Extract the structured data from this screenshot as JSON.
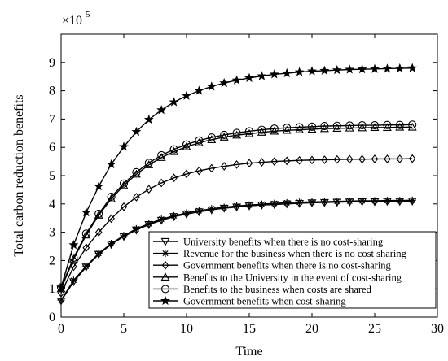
{
  "chart_data": {
    "type": "line",
    "xlabel": "Time",
    "ylabel": "Total carbon reduction benefits",
    "y_multiplier_label": "×10",
    "y_multiplier_exp": "5",
    "xlim": [
      0,
      30
    ],
    "ylim": [
      0,
      10
    ],
    "x_ticks": [
      0,
      5,
      10,
      15,
      20,
      25,
      30
    ],
    "y_ticks": [
      0,
      1,
      2,
      3,
      4,
      5,
      6,
      7,
      8,
      9
    ],
    "grid": false,
    "legend_position": "lower-right",
    "x": [
      0,
      1,
      2,
      3,
      4,
      5,
      6,
      7,
      8,
      9,
      10,
      11,
      12,
      13,
      14,
      15,
      16,
      17,
      18,
      19,
      20,
      21,
      22,
      23,
      24,
      25,
      26,
      27,
      28
    ],
    "series": [
      {
        "name": "University benefits when there is no cost-sharing",
        "marker": "triangle-down",
        "values": [
          0.57,
          1.25,
          1.77,
          2.22,
          2.57,
          2.85,
          3.08,
          3.27,
          3.42,
          3.55,
          3.64,
          3.72,
          3.79,
          3.85,
          3.89,
          3.93,
          3.96,
          3.98,
          4.0,
          4.02,
          4.04,
          4.05,
          4.06,
          4.07,
          4.08,
          4.08,
          4.09,
          4.09,
          4.1
        ]
      },
      {
        "name": "Revenue for the business when there is no cost sharing",
        "marker": "asterisk",
        "values": [
          0.6,
          1.3,
          1.8,
          2.25,
          2.6,
          2.88,
          3.12,
          3.3,
          3.46,
          3.58,
          3.68,
          3.76,
          3.83,
          3.88,
          3.93,
          3.96,
          3.99,
          4.02,
          4.04,
          4.06,
          4.07,
          4.08,
          4.09,
          4.1,
          4.11,
          4.11,
          4.12,
          4.12,
          4.13
        ]
      },
      {
        "name": "Government benefits when there is no cost-sharing",
        "marker": "diamond",
        "values": [
          0.85,
          1.78,
          2.45,
          3.0,
          3.48,
          3.9,
          4.24,
          4.52,
          4.74,
          4.92,
          5.06,
          5.17,
          5.26,
          5.33,
          5.39,
          5.44,
          5.47,
          5.5,
          5.52,
          5.54,
          5.55,
          5.56,
          5.57,
          5.58,
          5.58,
          5.59,
          5.59,
          5.59,
          5.6
        ]
      },
      {
        "name": "Benefits to the University in the event of cost-sharing",
        "marker": "triangle-up",
        "values": [
          1.0,
          2.05,
          2.9,
          3.6,
          4.18,
          4.65,
          5.05,
          5.38,
          5.64,
          5.85,
          6.02,
          6.16,
          6.27,
          6.36,
          6.43,
          6.48,
          6.53,
          6.57,
          6.6,
          6.62,
          6.64,
          6.66,
          6.67,
          6.68,
          6.69,
          6.7,
          6.7,
          6.71,
          6.71
        ]
      },
      {
        "name": "Benefits to the business when costs are shared",
        "marker": "circle",
        "values": [
          1.05,
          2.1,
          2.95,
          3.65,
          4.25,
          4.72,
          5.12,
          5.45,
          5.72,
          5.93,
          6.1,
          6.24,
          6.35,
          6.44,
          6.51,
          6.57,
          6.62,
          6.66,
          6.69,
          6.71,
          6.73,
          6.75,
          6.76,
          6.77,
          6.78,
          6.78,
          6.79,
          6.79,
          6.8
        ]
      },
      {
        "name": "Government benefits when cost-sharing",
        "marker": "star",
        "values": [
          1.05,
          2.55,
          3.7,
          4.62,
          5.4,
          6.02,
          6.55,
          6.98,
          7.32,
          7.6,
          7.82,
          8.0,
          8.15,
          8.27,
          8.37,
          8.45,
          8.52,
          8.58,
          8.62,
          8.66,
          8.69,
          8.71,
          8.73,
          8.75,
          8.76,
          8.77,
          8.78,
          8.79,
          8.8
        ]
      }
    ]
  }
}
